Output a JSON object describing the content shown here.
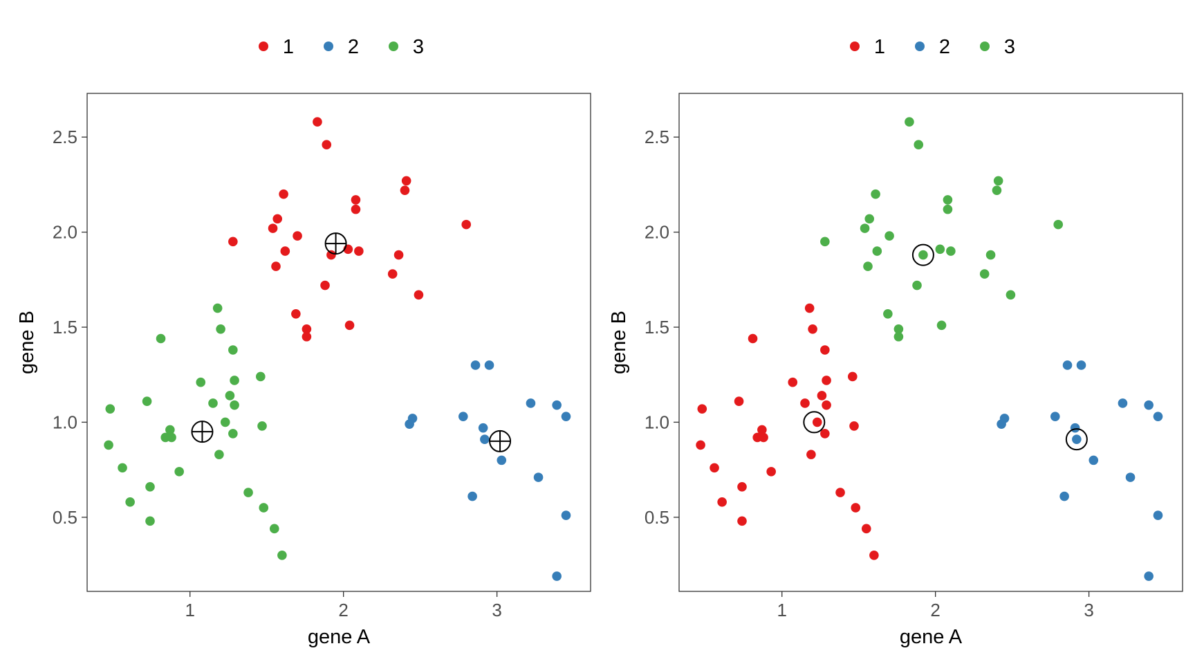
{
  "chart_data": [
    {
      "type": "scatter",
      "title": "",
      "xlabel": "gene A",
      "ylabel": "gene B",
      "xlim": [
        0.33,
        3.61
      ],
      "ylim": [
        0.11,
        2.73
      ],
      "x_ticks": [
        1,
        2,
        3
      ],
      "y_ticks": [
        0.5,
        1.0,
        1.5,
        2.0,
        2.5
      ],
      "x_tick_labels": [
        "1",
        "2",
        "3"
      ],
      "y_tick_labels": [
        "0.5",
        "1.0",
        "1.5",
        "2.0",
        "2.5"
      ],
      "grid": false,
      "legend_position": "top",
      "legend_entries": [
        "1",
        "2",
        "3"
      ],
      "series": [
        {
          "name": "1",
          "color": "#e41a1c",
          "x": [
            1.28,
            1.61,
            1.57,
            1.54,
            1.7,
            1.62,
            1.56,
            1.83,
            1.89,
            2.08,
            2.08,
            2.41,
            2.4,
            2.8,
            2.03,
            2.1,
            1.92,
            2.36,
            1.88,
            2.32,
            2.49,
            1.69,
            1.76,
            1.76,
            2.04
          ],
          "y": [
            1.95,
            2.2,
            2.07,
            2.02,
            1.98,
            1.9,
            1.82,
            2.58,
            2.46,
            2.17,
            2.12,
            2.27,
            2.22,
            2.04,
            1.91,
            1.9,
            1.88,
            1.88,
            1.72,
            1.78,
            1.67,
            1.57,
            1.49,
            1.45,
            1.51
          ]
        },
        {
          "name": "2",
          "color": "#377eb8",
          "x": [
            2.86,
            2.95,
            2.78,
            2.91,
            2.92,
            3.03,
            2.84,
            2.45,
            2.43,
            3.22,
            3.39,
            3.45,
            3.27,
            3.45,
            3.39
          ],
          "y": [
            1.3,
            1.3,
            1.03,
            0.97,
            0.91,
            0.8,
            0.61,
            1.02,
            0.99,
            1.1,
            1.09,
            1.03,
            0.71,
            0.51,
            0.19
          ]
        },
        {
          "name": "3",
          "color": "#4daf4a",
          "x": [
            0.48,
            0.47,
            0.56,
            0.61,
            0.72,
            0.74,
            0.74,
            0.81,
            0.84,
            0.87,
            0.88,
            0.93,
            1.07,
            1.15,
            1.18,
            1.19,
            1.2,
            1.23,
            1.26,
            1.28,
            1.29,
            1.29,
            1.28,
            1.38,
            1.46,
            1.47,
            1.48,
            1.55,
            1.6
          ],
          "y": [
            1.07,
            0.88,
            0.76,
            0.58,
            1.11,
            0.66,
            0.48,
            1.44,
            0.92,
            0.96,
            0.92,
            0.74,
            1.21,
            1.1,
            1.6,
            0.83,
            1.49,
            1.0,
            1.14,
            1.38,
            1.22,
            1.09,
            0.94,
            0.63,
            1.24,
            0.98,
            0.55,
            0.44,
            0.3
          ]
        }
      ],
      "markers": {
        "style": "crosshair-circle",
        "color": "#000000",
        "x": [
          1.08,
          1.95,
          3.02
        ],
        "y": [
          0.95,
          1.94,
          0.9
        ]
      }
    },
    {
      "type": "scatter",
      "title": "",
      "xlabel": "gene A",
      "ylabel": "gene B",
      "xlim": [
        0.33,
        3.61
      ],
      "ylim": [
        0.11,
        2.73
      ],
      "x_ticks": [
        1,
        2,
        3
      ],
      "y_ticks": [
        0.5,
        1.0,
        1.5,
        2.0,
        2.5
      ],
      "x_tick_labels": [
        "1",
        "2",
        "3"
      ],
      "y_tick_labels": [
        "0.5",
        "1.0",
        "1.5",
        "2.0",
        "2.5"
      ],
      "grid": false,
      "legend_position": "top",
      "legend_entries": [
        "1",
        "2",
        "3"
      ],
      "series": [
        {
          "name": "1",
          "color": "#e41a1c",
          "x": [
            0.48,
            0.47,
            0.56,
            0.61,
            0.72,
            0.74,
            0.74,
            0.81,
            0.84,
            0.87,
            0.88,
            0.93,
            1.07,
            1.15,
            1.18,
            1.19,
            1.2,
            1.23,
            1.26,
            1.28,
            1.29,
            1.29,
            1.28,
            1.38,
            1.46,
            1.47,
            1.48,
            1.55,
            1.6
          ],
          "y": [
            1.07,
            0.88,
            0.76,
            0.58,
            1.11,
            0.66,
            0.48,
            1.44,
            0.92,
            0.96,
            0.92,
            0.74,
            1.21,
            1.1,
            1.6,
            0.83,
            1.49,
            1.0,
            1.14,
            1.38,
            1.22,
            1.09,
            0.94,
            0.63,
            1.24,
            0.98,
            0.55,
            0.44,
            0.3
          ]
        },
        {
          "name": "2",
          "color": "#377eb8",
          "x": [
            2.86,
            2.95,
            2.78,
            2.91,
            2.92,
            3.03,
            2.84,
            2.45,
            2.43,
            3.22,
            3.39,
            3.45,
            3.27,
            3.45,
            3.39
          ],
          "y": [
            1.3,
            1.3,
            1.03,
            0.97,
            0.91,
            0.8,
            0.61,
            1.02,
            0.99,
            1.1,
            1.09,
            1.03,
            0.71,
            0.51,
            0.19
          ]
        },
        {
          "name": "3",
          "color": "#4daf4a",
          "x": [
            1.28,
            1.61,
            1.57,
            1.54,
            1.7,
            1.62,
            1.56,
            1.83,
            1.89,
            2.08,
            2.08,
            2.41,
            2.4,
            2.8,
            2.03,
            2.1,
            1.92,
            2.36,
            1.88,
            2.32,
            2.49,
            1.69,
            1.76,
            1.76,
            2.04
          ],
          "y": [
            1.95,
            2.2,
            2.07,
            2.02,
            1.98,
            1.9,
            1.82,
            2.58,
            2.46,
            2.17,
            2.12,
            2.27,
            2.22,
            2.04,
            1.91,
            1.9,
            1.88,
            1.88,
            1.72,
            1.78,
            1.67,
            1.57,
            1.49,
            1.45,
            1.51
          ]
        }
      ],
      "markers": {
        "style": "open-circle",
        "color": "#000000",
        "x": [
          1.21,
          1.92,
          2.92
        ],
        "y": [
          1.0,
          1.88,
          0.91
        ]
      }
    }
  ]
}
